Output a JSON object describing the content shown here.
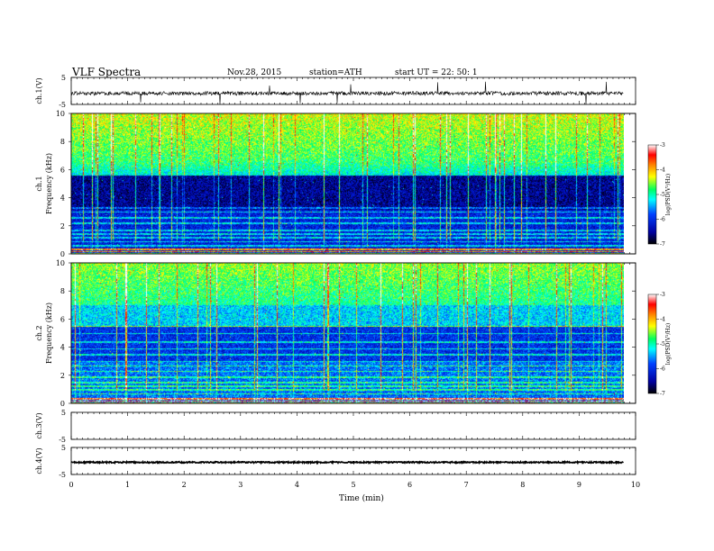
{
  "header": {
    "title": "VLF  Spectra",
    "date": "Nov.28, 2015",
    "station": "station=ATH",
    "start": "start  UT  =    22: 50: 1"
  },
  "chart_data": [
    {
      "type": "line",
      "panel": "ch1-waveform",
      "ylabel": "ch.1(V)",
      "yticks": [
        "5",
        "-5"
      ],
      "ylim": [
        -5,
        5
      ],
      "xlim": [
        0,
        10
      ],
      "baseline_v": -0.9,
      "description_of_signal": "noisy waveform near -1 V with spikes"
    },
    {
      "type": "heatmap",
      "panel": "ch1-spectrogram",
      "ylabel": "ch.1",
      "ylabel2": "Frequency  (kHz)",
      "yticks": [
        "0",
        "2",
        "4",
        "6",
        "8",
        "10"
      ],
      "ylim": [
        0,
        10
      ],
      "xlim": [
        0,
        9.8
      ]
    },
    {
      "type": "heatmap",
      "panel": "ch2-spectrogram",
      "ylabel": "ch.2",
      "ylabel2": "Frequency  (kHz)",
      "yticks": [
        "0",
        "2",
        "4",
        "6",
        "8",
        "10"
      ],
      "ylim": [
        0,
        10
      ],
      "xlim": [
        0,
        9.8
      ]
    },
    {
      "type": "line",
      "panel": "ch3-waveform",
      "ylabel": "ch.3(V)",
      "yticks": [
        "5",
        "-5"
      ],
      "ylim": [
        -5,
        5
      ],
      "xlim": [
        0,
        10
      ]
    },
    {
      "type": "line",
      "panel": "ch4-waveform",
      "ylabel": "ch.4(V)",
      "yticks": [
        "5",
        "-5"
      ],
      "ylim": [
        -5,
        5
      ],
      "xlim": [
        0,
        10
      ],
      "baseline_v": -0.5
    }
  ],
  "xaxis": {
    "label": "Time  (min)",
    "ticks": [
      "0",
      "1",
      "2",
      "3",
      "4",
      "5",
      "6",
      "7",
      "8",
      "9",
      "10"
    ]
  },
  "colorbar": {
    "label": "log(PSD(V²/Hz)",
    "ticks": [
      "-3",
      "-4",
      "-5",
      "-6",
      "-7"
    ],
    "range": [
      -7,
      -3
    ]
  }
}
